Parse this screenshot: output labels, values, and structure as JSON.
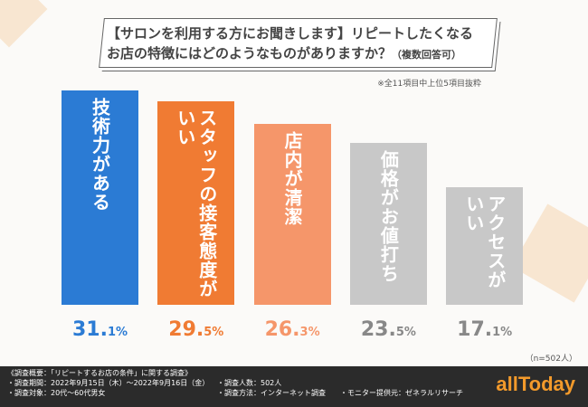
{
  "title": {
    "line1": "【サロンを利用する方にお聞きします】リピートしたくなる",
    "line2": "お店の特徴にはどのようなものがありますか？",
    "suffix": "（複数回答可）"
  },
  "note": "※全11項目中上位5項目抜粋",
  "sample": "（n=502人）",
  "chart_data": {
    "type": "bar",
    "categories": [
      "技術力がある",
      "スタッフの接客態度がいい",
      "店内が清潔",
      "価格がお値打ち",
      "アクセスがいい"
    ],
    "values": [
      31.1,
      29.5,
      26.3,
      23.5,
      17.1
    ],
    "unit": "%",
    "colors": [
      "#2b7bd4",
      "#f07b33",
      "#f5966a",
      "#c8c8c8",
      "#c8c8c8"
    ],
    "value_colors": [
      "#2b7bd4",
      "#f07b33",
      "#f5966a",
      "#888888",
      "#888888"
    ],
    "ylim": [
      0,
      31.1
    ]
  },
  "footer": {
    "heading": "《調査概要：「リピートするお店の条件」に関する調査》",
    "period": "・調査期間：2022年9月15日（木）～2022年9月16日（金）",
    "count": "・調査人数：502人",
    "target": "・調査対象：20代～60代男女",
    "method": "・調査方法：インターネット調査",
    "provider": "・モニター提供元：ゼネラルリサーチ"
  },
  "logo": "allToday"
}
